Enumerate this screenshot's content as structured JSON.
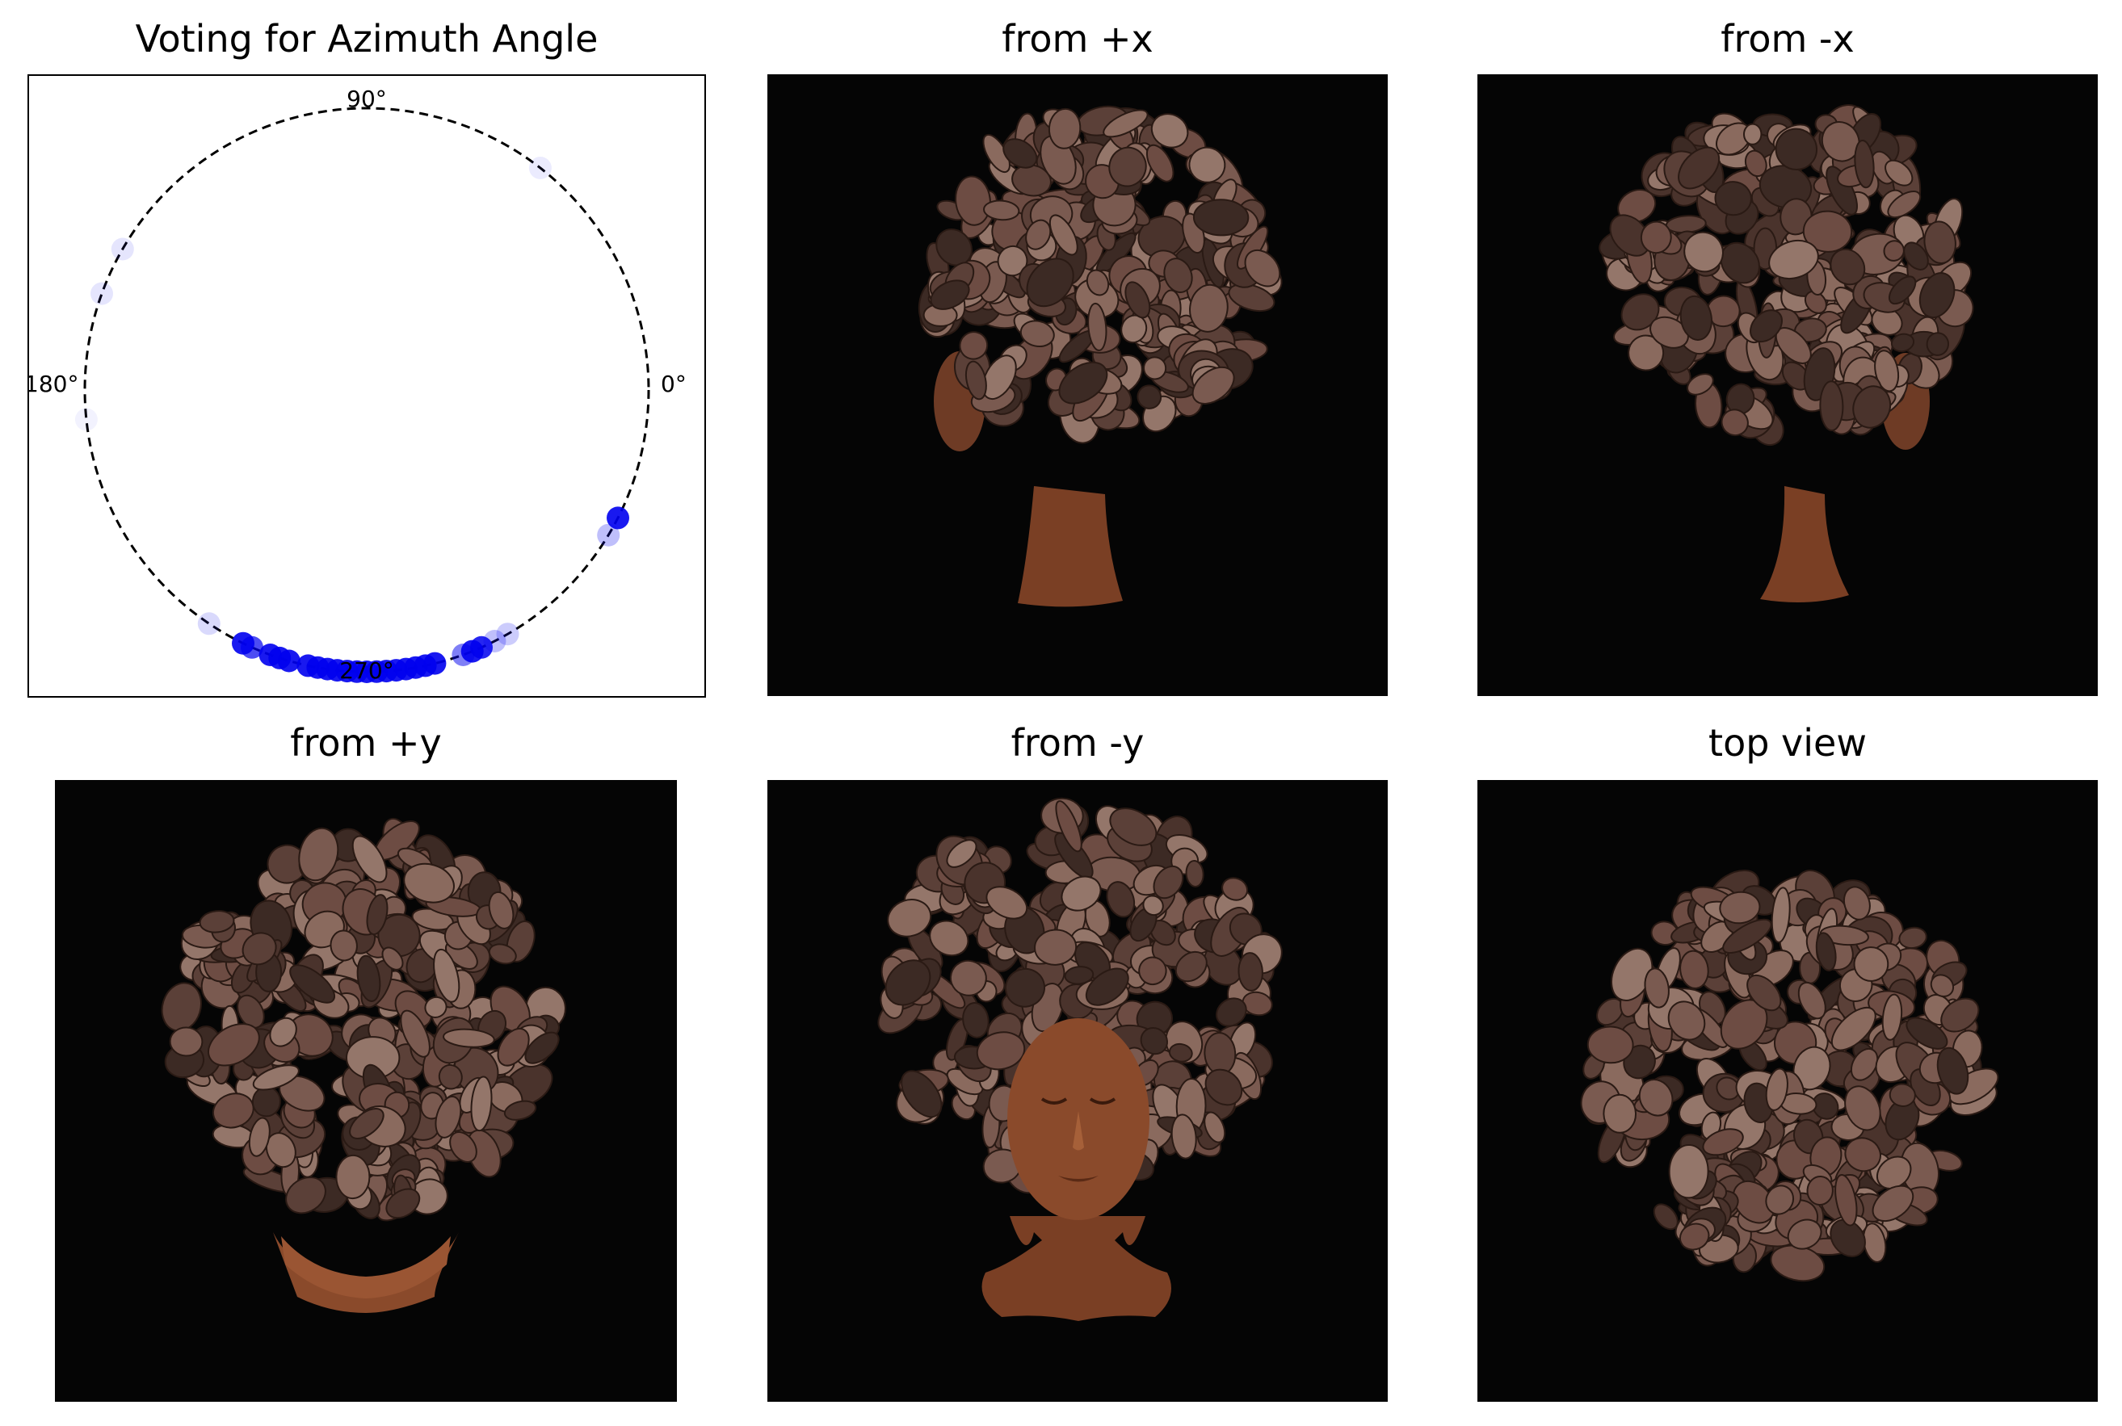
{
  "figure": {
    "panels": [
      {
        "title": "Voting for Azimuth Angle",
        "kind": "polar-vote"
      },
      {
        "title": "from +x",
        "kind": "render",
        "view": "side-left"
      },
      {
        "title": "from -x",
        "kind": "render",
        "view": "side-right"
      },
      {
        "title": "from +y",
        "kind": "render",
        "view": "back"
      },
      {
        "title": "from -y",
        "kind": "render",
        "view": "front"
      },
      {
        "title": "top view",
        "kind": "render",
        "view": "top"
      }
    ]
  },
  "chart_data": {
    "type": "scatter",
    "title": "Voting for Azimuth Angle",
    "angle_tick_labels": [
      "0°",
      "90°",
      "180°",
      "270°"
    ],
    "angle_ticks_deg": [
      0,
      90,
      180,
      270
    ],
    "marker_color": "#0000ee",
    "votes": [
      {
        "angle": 329,
        "alpha": 0.25
      },
      {
        "angle": 333,
        "alpha": 0.9
      },
      {
        "angle": 300,
        "alpha": 0.2
      },
      {
        "angle": 297,
        "alpha": 0.25
      },
      {
        "angle": 294,
        "alpha": 0.85
      },
      {
        "angle": 292,
        "alpha": 0.9
      },
      {
        "angle": 290,
        "alpha": 0.5
      },
      {
        "angle": 284,
        "alpha": 0.9
      },
      {
        "angle": 282,
        "alpha": 0.9
      },
      {
        "angle": 280,
        "alpha": 0.9
      },
      {
        "angle": 278,
        "alpha": 0.9
      },
      {
        "angle": 276,
        "alpha": 0.9
      },
      {
        "angle": 274,
        "alpha": 0.9
      },
      {
        "angle": 272,
        "alpha": 0.9
      },
      {
        "angle": 270,
        "alpha": 0.9
      },
      {
        "angle": 268,
        "alpha": 0.9
      },
      {
        "angle": 266,
        "alpha": 0.9
      },
      {
        "angle": 264,
        "alpha": 0.9
      },
      {
        "angle": 262,
        "alpha": 0.9
      },
      {
        "angle": 260,
        "alpha": 0.9
      },
      {
        "angle": 258,
        "alpha": 0.9
      },
      {
        "angle": 254,
        "alpha": 0.9
      },
      {
        "angle": 252,
        "alpha": 0.9
      },
      {
        "angle": 250,
        "alpha": 0.9
      },
      {
        "angle": 246,
        "alpha": 0.7
      },
      {
        "angle": 244,
        "alpha": 0.9
      },
      {
        "angle": 236,
        "alpha": 0.15
      },
      {
        "angle": 150,
        "alpha": 0.1
      },
      {
        "angle": 160,
        "alpha": 0.1
      },
      {
        "angle": 52,
        "alpha": 0.08
      },
      {
        "angle": 186,
        "alpha": 0.05
      }
    ]
  }
}
